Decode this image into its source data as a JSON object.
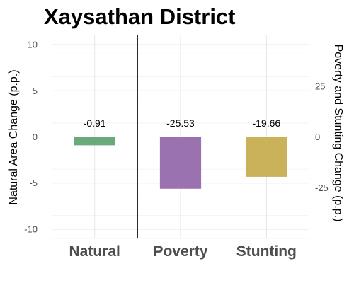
{
  "chart_data": {
    "type": "bar",
    "title": "Xaysathan District",
    "categories": [
      "Natural",
      "Poverty",
      "Stunting"
    ],
    "values": [
      -0.91,
      -25.53,
      -19.66
    ],
    "data_labels": [
      "-0.91",
      "-25.53",
      "-19.66"
    ],
    "colors": [
      "#6aaa7a",
      "#9a72b0",
      "#c9b25a"
    ],
    "axis_assignment": [
      "left",
      "right",
      "right"
    ],
    "ylabel_left": "Natural Area Change (p.p.)",
    "ylabel_right": "Poverty and Stunting Change (p.p.)",
    "ylim_left": [
      -11,
      11
    ],
    "ylim_right": [
      -50,
      50
    ],
    "yticks_left": [
      10,
      5,
      0,
      -5,
      -10
    ],
    "yticks_left_labels": [
      "10",
      "5",
      "0",
      "-5",
      "-10"
    ],
    "yticks_right": [
      25,
      0,
      -25
    ],
    "yticks_right_labels": [
      "25",
      "0",
      "-25"
    ],
    "grid": true,
    "legend": "none"
  }
}
